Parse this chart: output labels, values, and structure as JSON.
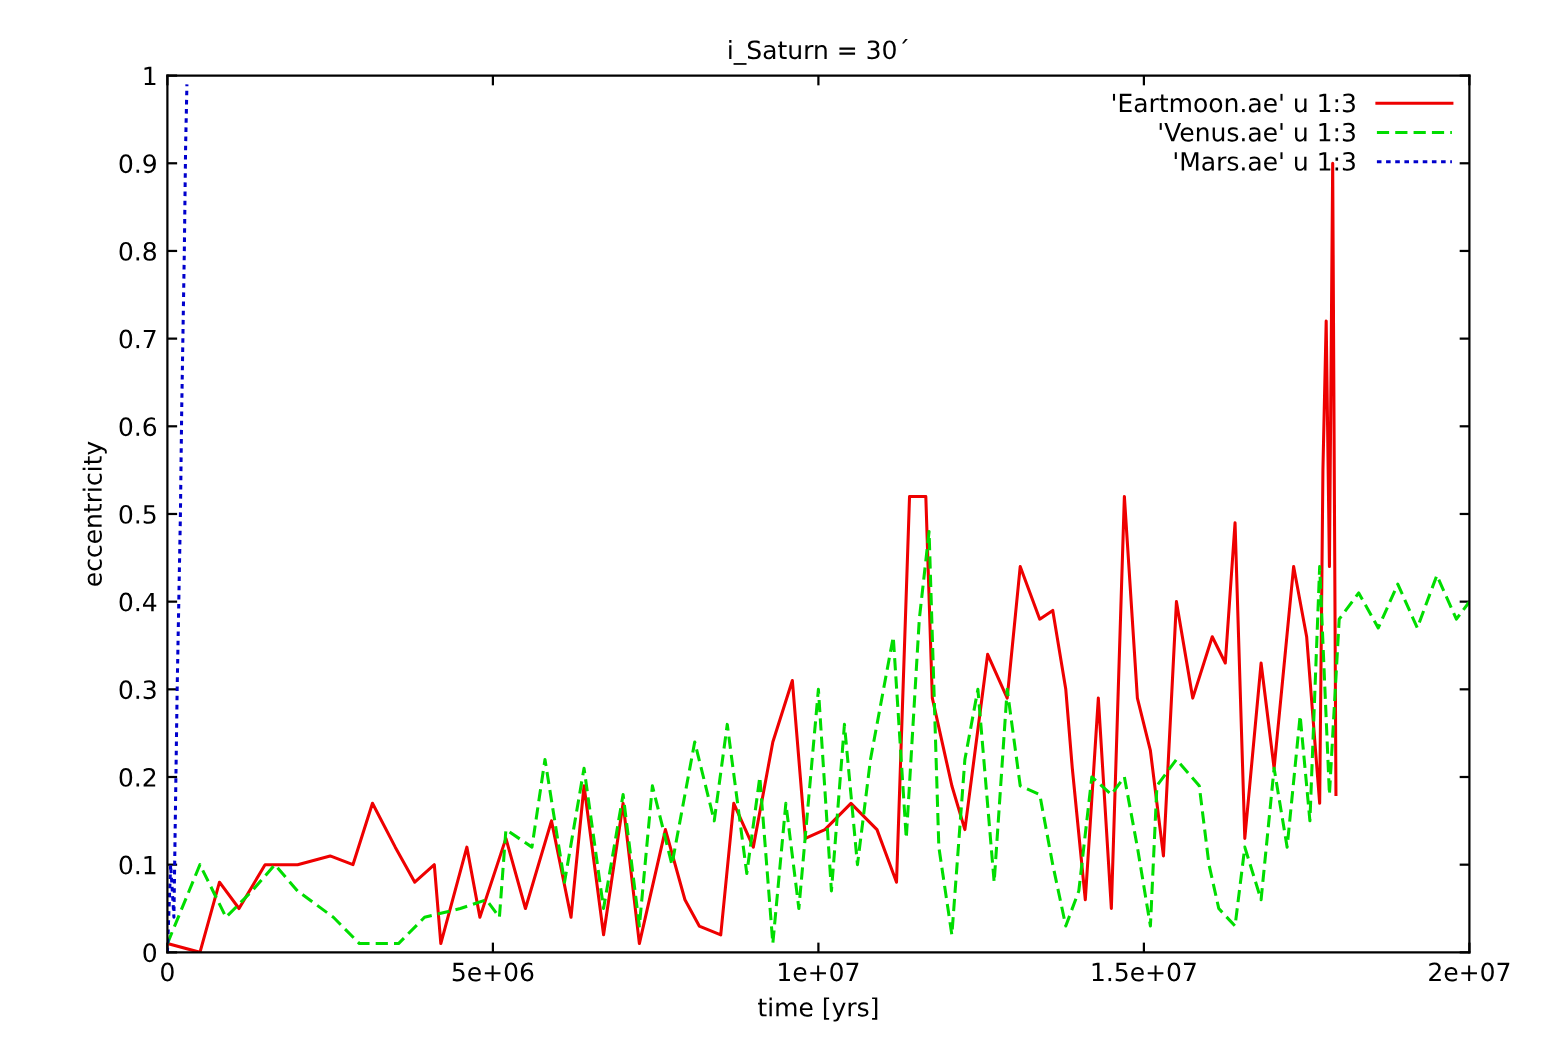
{
  "chart_data": {
    "type": "line",
    "title": "i_Saturn = 30´",
    "xlabel": "time [yrs]",
    "ylabel": "eccentricity",
    "xlim": [
      0,
      20000000
    ],
    "ylim": [
      0,
      1
    ],
    "xticks": [
      {
        "value": 0,
        "label": "0"
      },
      {
        "value": 5000000,
        "label": "5e+06"
      },
      {
        "value": 10000000,
        "label": "1e+07"
      },
      {
        "value": 15000000,
        "label": "1.5e+07"
      },
      {
        "value": 20000000,
        "label": "2e+07"
      }
    ],
    "yticks": [
      0,
      0.1,
      0.2,
      0.3,
      0.4,
      0.5,
      0.6,
      0.7,
      0.8,
      0.9,
      1
    ],
    "grid": false,
    "legend": "top right",
    "marker": "none",
    "series": [
      {
        "name": "'Eartmoon.ae' u 1:3",
        "color": "#ee0000",
        "line_style": "solid",
        "x": [
          0,
          500000,
          800000,
          1100000,
          1500000,
          2000000,
          2500000,
          2850000,
          3150000,
          3500000,
          3800000,
          4100000,
          4200000,
          4600000,
          4800000,
          5200000,
          5500000,
          5900000,
          6200000,
          6400000,
          6700000,
          7000000,
          7250000,
          7650000,
          7950000,
          8170000,
          8500000,
          8700000,
          9000000,
          9300000,
          9600000,
          9800000,
          10100000,
          10500000,
          10900000,
          11200000,
          11400000,
          11650000,
          11750000,
          12050000,
          12250000,
          12600000,
          12900000,
          13100000,
          13400000,
          13600000,
          13800000,
          13900000,
          14100000,
          14300000,
          14500000,
          14700000,
          14900000,
          15100000,
          15300000,
          15500000,
          15750000,
          16050000,
          16250000,
          16400000,
          16550000,
          16800000,
          17000000,
          17300000,
          17500000,
          17700000,
          17750000,
          17800000,
          17850000,
          17900000,
          17950000
        ],
        "values": [
          0.01,
          0.0,
          0.08,
          0.05,
          0.1,
          0.1,
          0.11,
          0.1,
          0.17,
          0.12,
          0.08,
          0.1,
          0.01,
          0.12,
          0.04,
          0.13,
          0.05,
          0.15,
          0.04,
          0.19,
          0.02,
          0.17,
          0.01,
          0.14,
          0.06,
          0.03,
          0.02,
          0.17,
          0.12,
          0.24,
          0.31,
          0.13,
          0.14,
          0.17,
          0.14,
          0.08,
          0.52,
          0.52,
          0.29,
          0.19,
          0.14,
          0.34,
          0.29,
          0.44,
          0.38,
          0.39,
          0.3,
          0.21,
          0.06,
          0.29,
          0.05,
          0.52,
          0.29,
          0.23,
          0.11,
          0.4,
          0.29,
          0.36,
          0.33,
          0.49,
          0.13,
          0.33,
          0.21,
          0.44,
          0.36,
          0.17,
          0.55,
          0.72,
          0.44,
          0.9,
          0.18
        ]
      },
      {
        "name": "'Venus.ae' u 1:3",
        "color": "#00dd00",
        "line_style": "dashed",
        "x": [
          0,
          500000,
          900000,
          1300000,
          1650000,
          2000000,
          2550000,
          2950000,
          3550000,
          3950000,
          4500000,
          4900000,
          5100000,
          5200000,
          5600000,
          5800000,
          6100000,
          6400000,
          6700000,
          7000000,
          7250000,
          7450000,
          7750000,
          8100000,
          8400000,
          8600000,
          8900000,
          9100000,
          9300000,
          9500000,
          9700000,
          10000000,
          10200000,
          10400000,
          10600000,
          10800000,
          11000000,
          11150000,
          11350000,
          11550000,
          11700000,
          11850000,
          12050000,
          12250000,
          12450000,
          12700000,
          12900000,
          13100000,
          13400000,
          13600000,
          13800000,
          14000000,
          14200000,
          14500000,
          14700000,
          14900000,
          15100000,
          15200000,
          15500000,
          15850000,
          16000000,
          16150000,
          16400000,
          16550000,
          16800000,
          17000000,
          17200000,
          17400000,
          17550000,
          17700000,
          17850000,
          18000000,
          18300000,
          18600000,
          18900000,
          19200000,
          19500000,
          19800000,
          20000000
        ],
        "values": [
          0.01,
          0.1,
          0.04,
          0.07,
          0.1,
          0.07,
          0.04,
          0.01,
          0.01,
          0.04,
          0.05,
          0.06,
          0.04,
          0.14,
          0.12,
          0.22,
          0.08,
          0.21,
          0.05,
          0.18,
          0.03,
          0.19,
          0.1,
          0.24,
          0.15,
          0.26,
          0.09,
          0.2,
          0.01,
          0.17,
          0.05,
          0.3,
          0.07,
          0.26,
          0.1,
          0.22,
          0.3,
          0.36,
          0.13,
          0.38,
          0.48,
          0.12,
          0.02,
          0.22,
          0.3,
          0.08,
          0.3,
          0.19,
          0.18,
          0.1,
          0.03,
          0.07,
          0.2,
          0.18,
          0.2,
          0.12,
          0.03,
          0.19,
          0.22,
          0.19,
          0.1,
          0.05,
          0.03,
          0.12,
          0.06,
          0.21,
          0.12,
          0.27,
          0.15,
          0.44,
          0.18,
          0.38,
          0.41,
          0.37,
          0.42,
          0.37,
          0.43,
          0.38,
          0.4
        ]
      },
      {
        "name": "'Mars.ae' u 1:3",
        "color": "#0000cc",
        "line_style": "dotted",
        "x": [
          0,
          50000,
          100000,
          150000,
          200000,
          220000,
          260000,
          280000,
          300000
        ],
        "values": [
          0.0,
          0.1,
          0.04,
          0.3,
          0.5,
          0.62,
          0.8,
          0.92,
          0.99
        ]
      }
    ]
  }
}
